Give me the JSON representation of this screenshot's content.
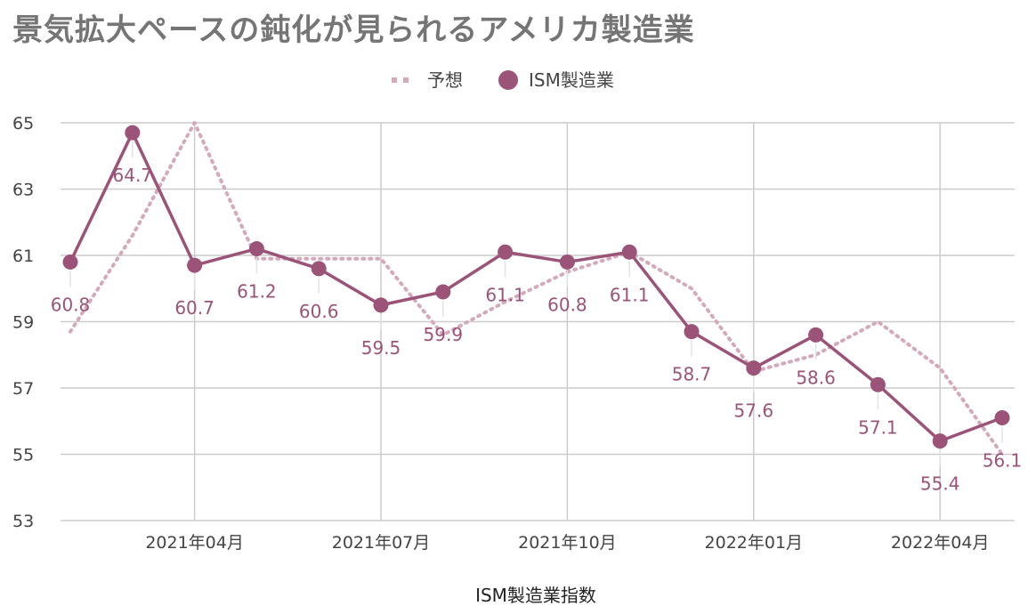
{
  "title": "景気拡大ペースの鈍化が見られるアメリカ製造業",
  "chart_data": {
    "type": "line",
    "title": "景気拡大ペースの鈍化が見られるアメリカ製造業",
    "xlabel": "ISM製造業指数",
    "ylabel": "",
    "ylim": [
      53,
      65
    ],
    "yticks": [
      53,
      55,
      57,
      59,
      61,
      63,
      65
    ],
    "x": [
      "2021-02",
      "2021-03",
      "2021-04",
      "2021-05",
      "2021-06",
      "2021-07",
      "2021-08",
      "2021-09",
      "2021-10",
      "2021-11",
      "2021-12",
      "2022-01",
      "2022-02",
      "2022-03",
      "2022-04",
      "2022-05"
    ],
    "xtick_labels": [
      {
        "x": "2021-04",
        "label": "2021年04月"
      },
      {
        "x": "2021-07",
        "label": "2021年07月"
      },
      {
        "x": "2021-10",
        "label": "2021年10月"
      },
      {
        "x": "2022-01",
        "label": "2022年01月"
      },
      {
        "x": "2022-04",
        "label": "2022年04月"
      }
    ],
    "grid": true,
    "legend_position": "top-center",
    "series": [
      {
        "name": "予想",
        "style": "dotted",
        "color": "#d4a9bc",
        "values": [
          58.7,
          61.6,
          65.0,
          60.9,
          60.9,
          60.9,
          58.6,
          59.6,
          60.5,
          61.1,
          60.0,
          57.5,
          58.0,
          59.0,
          57.6,
          55.0
        ]
      },
      {
        "name": "ISM製造業",
        "style": "solid-markers",
        "color": "#9b5378",
        "values": [
          60.8,
          64.7,
          60.7,
          61.2,
          60.6,
          59.5,
          59.9,
          61.1,
          60.8,
          61.1,
          58.7,
          57.6,
          58.6,
          57.1,
          55.4,
          56.1
        ],
        "data_labels": [
          "60.8",
          "64.7",
          "60.7",
          "61.2",
          "60.6",
          "59.5",
          "59.9",
          "61.1",
          "60.8",
          "61.1",
          "58.7",
          "57.6",
          "58.6",
          "57.1",
          "55.4",
          "56.1"
        ]
      }
    ]
  }
}
